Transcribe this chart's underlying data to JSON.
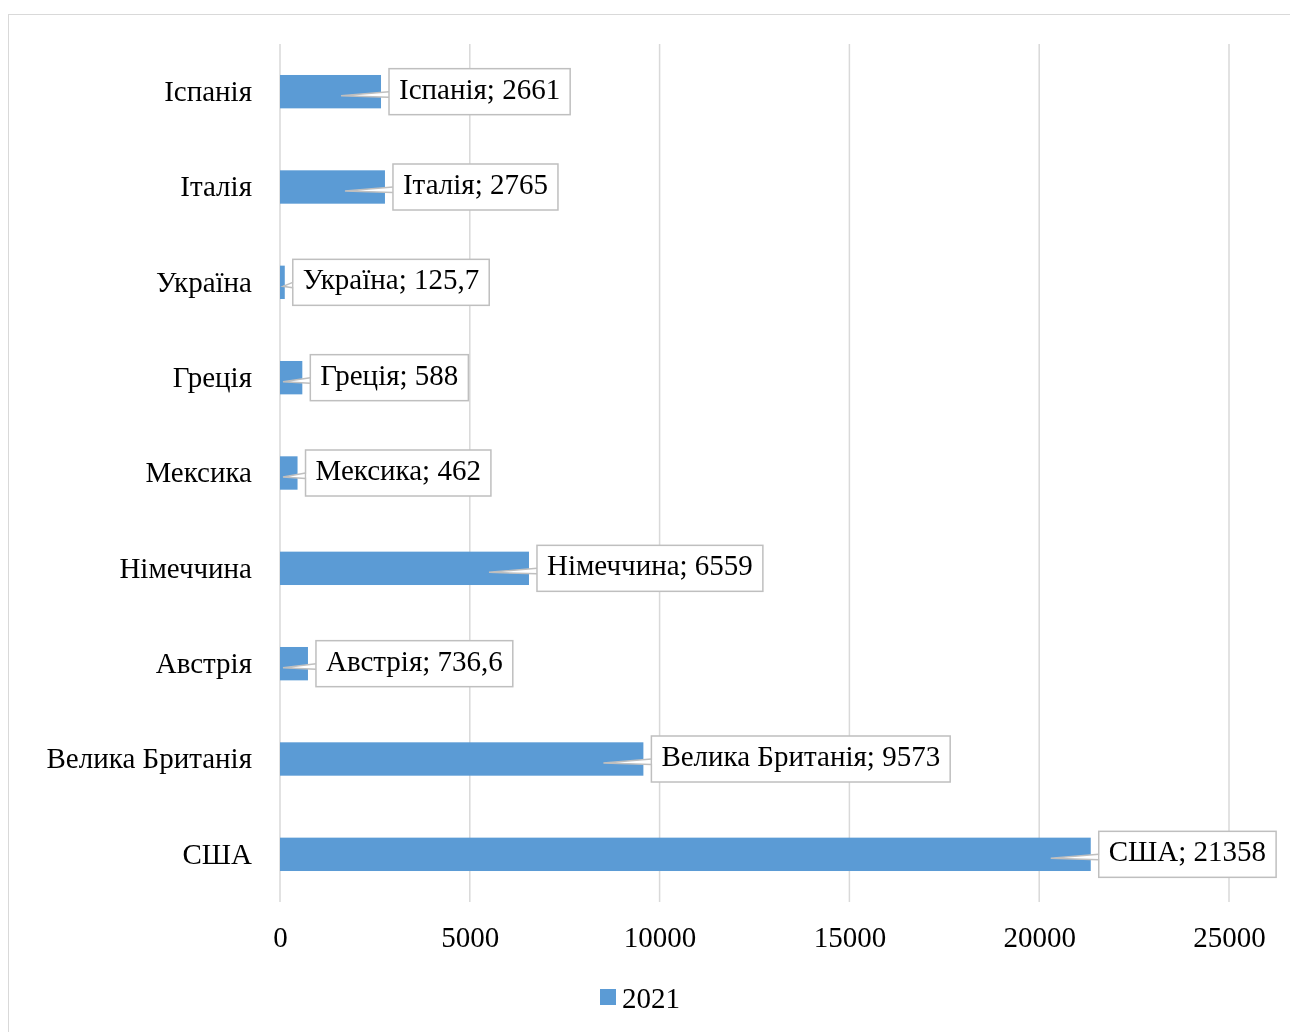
{
  "chart_data": {
    "type": "bar",
    "orientation": "horizontal",
    "categories": [
      "Іспанія",
      "Італія",
      "Україна",
      "Греція",
      "Мексика",
      "Німеччина",
      "Австрія",
      "Велика Британія",
      "США"
    ],
    "series": [
      {
        "name": "2021",
        "color": "#5b9bd5",
        "values": [
          2661,
          2765,
          125.7,
          588,
          462,
          6559,
          736.6,
          9573,
          21358
        ],
        "value_labels": [
          "Іспанія; 2661",
          "Італія; 2765",
          "Україна; 125,7",
          "Греція; 588",
          "Мексика; 462",
          "Німеччина; 6559",
          "Австрія; 736,6",
          "Велика Британія; 9573",
          "США; 21358"
        ]
      }
    ],
    "xlim": [
      0,
      25000
    ],
    "xticks": [
      0,
      5000,
      10000,
      15000,
      20000,
      25000
    ],
    "grid": "x",
    "legend": "bottom"
  }
}
